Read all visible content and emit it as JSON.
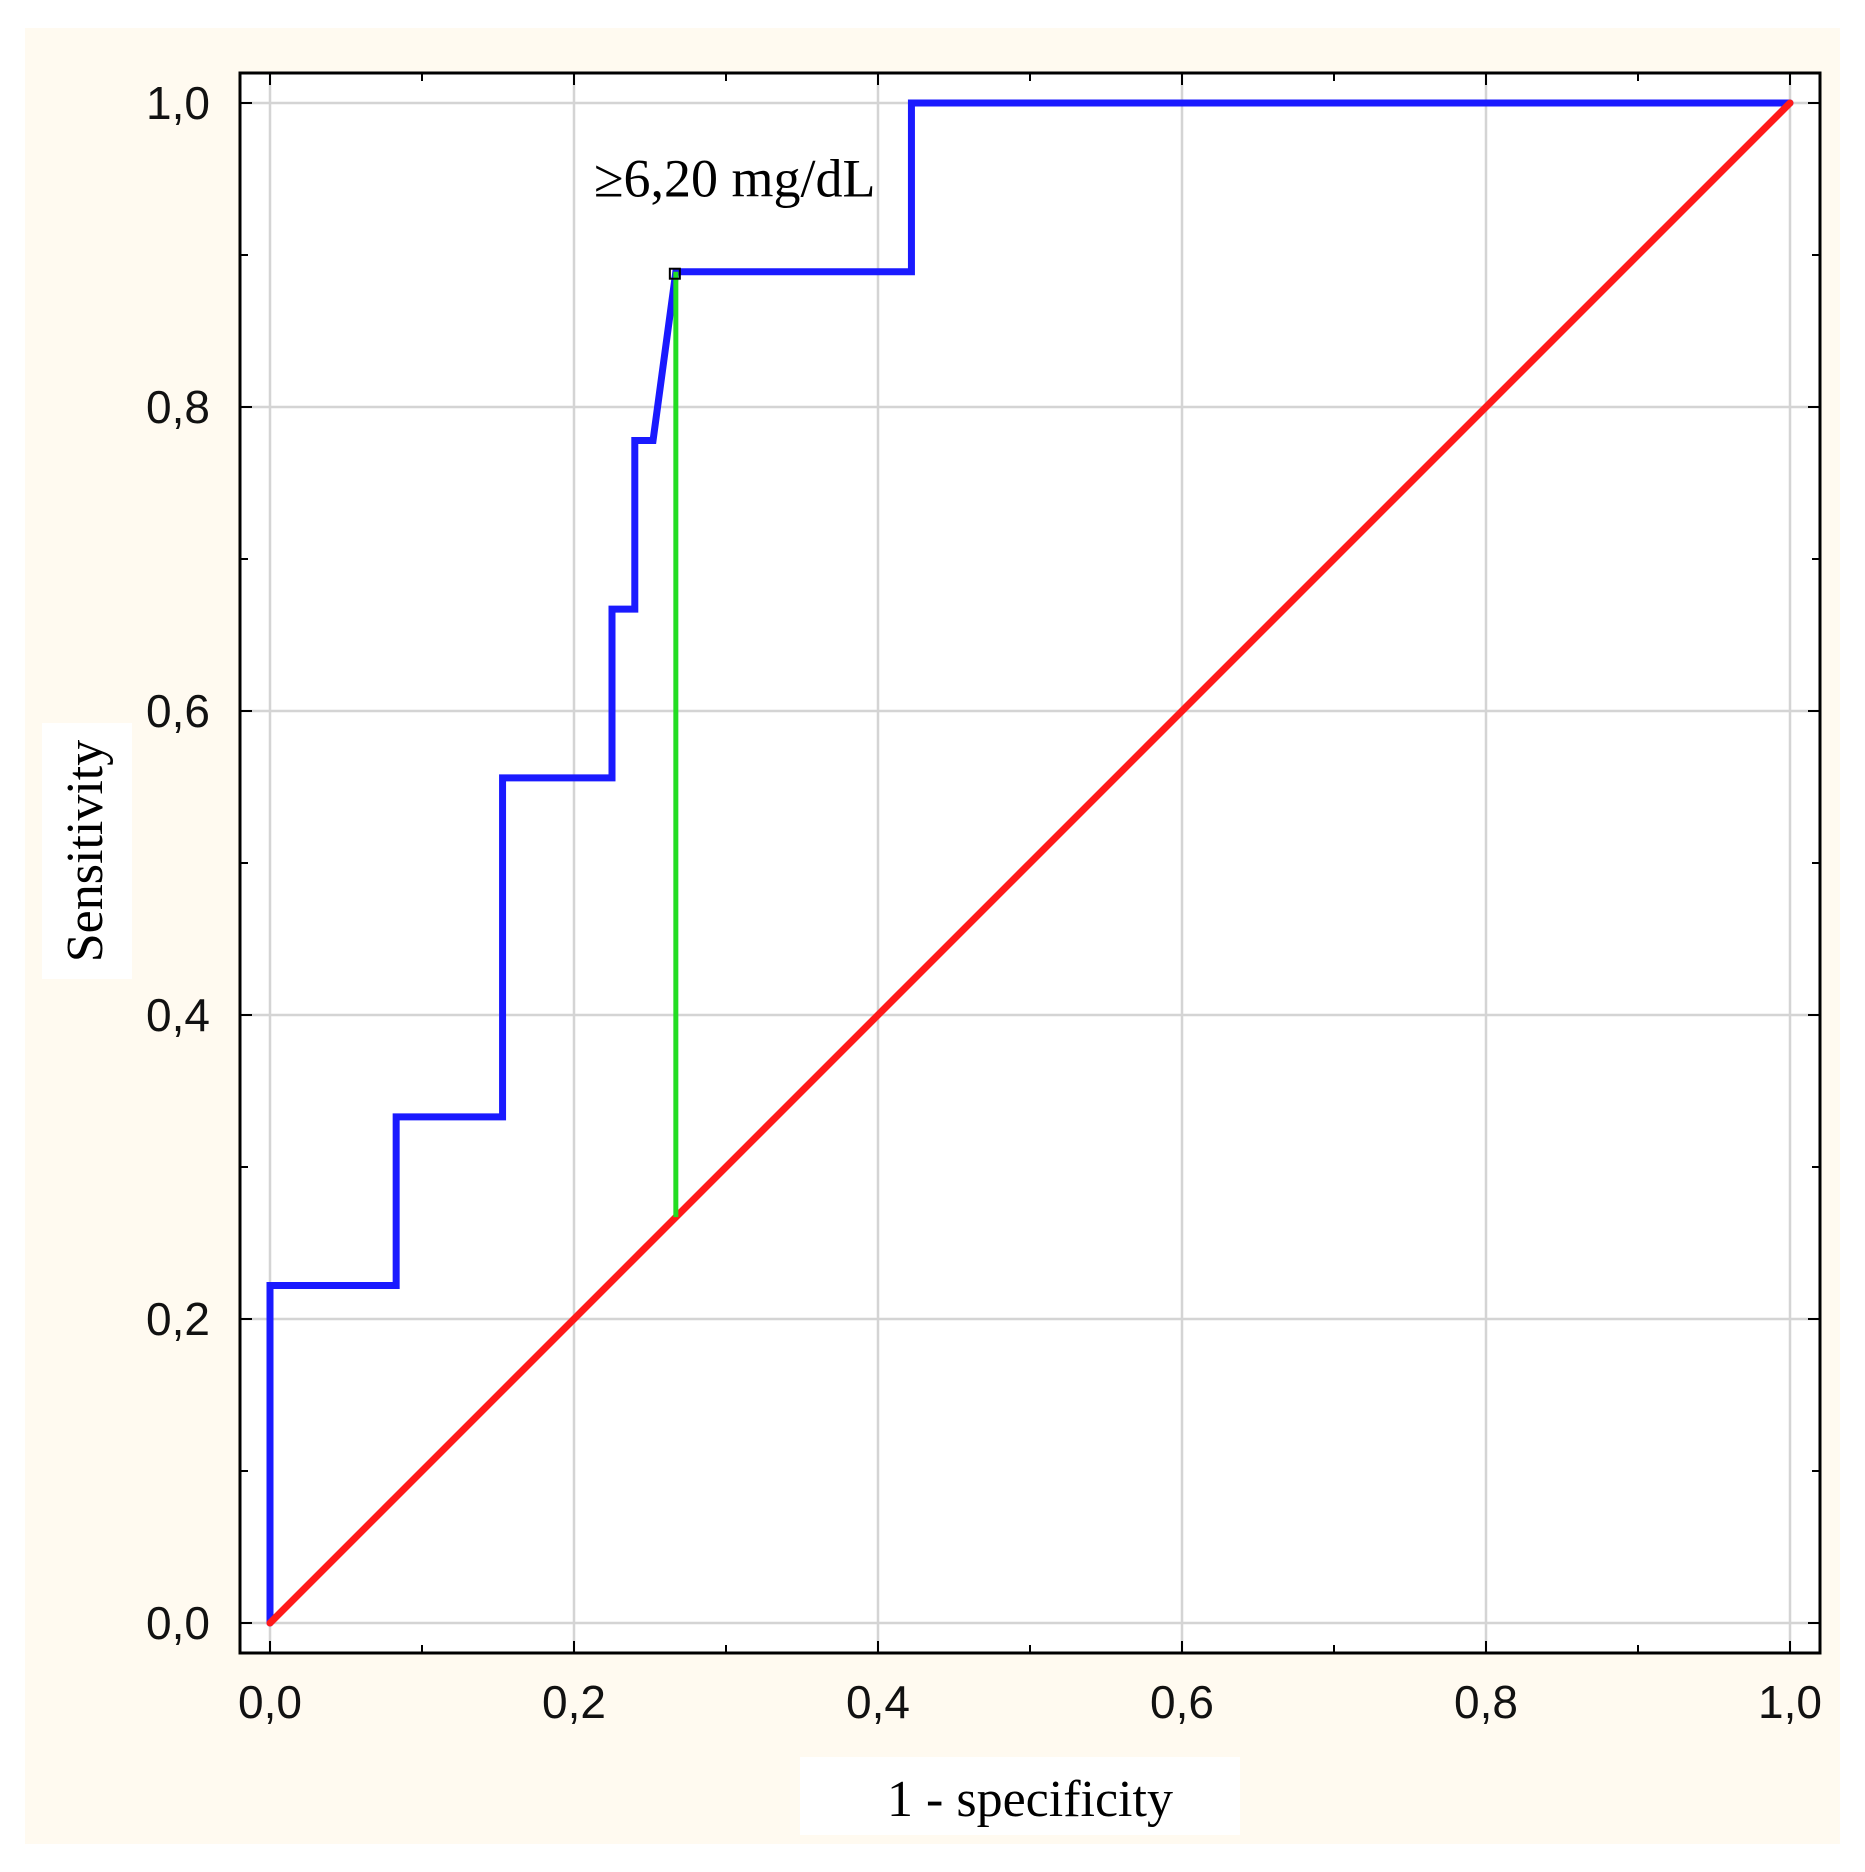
{
  "chart_data": {
    "type": "line",
    "xlabel": "1 - specificity",
    "ylabel": "Sensitivity",
    "xlim": [
      0,
      1
    ],
    "ylim": [
      0,
      1
    ],
    "grid": true,
    "x_ticks": [
      "0,0",
      "0,2",
      "0,4",
      "0,6",
      "0,8",
      "1,0"
    ],
    "y_ticks": [
      "0,0",
      "0,2",
      "0,4",
      "0,6",
      "0,8",
      "1,0"
    ],
    "tick_values": [
      0,
      0.2,
      0.4,
      0.6,
      0.8,
      1.0
    ],
    "minor_tick_values": [
      0.1,
      0.3,
      0.5,
      0.7,
      0.9
    ],
    "series": [
      {
        "color": "#1a1aff",
        "x": [
          0,
          0,
          0.083,
          0.083,
          0.153,
          0.153,
          0.225,
          0.225,
          0.24,
          0.24,
          0.252,
          0.252,
          0.267,
          0.267,
          0.422,
          0.422,
          1.0
        ],
        "y": [
          0,
          0.222,
          0.222,
          0.333,
          0.333,
          0.556,
          0.556,
          0.667,
          0.667,
          0.778,
          0.778,
          0.778,
          0.889,
          0.889,
          0.889,
          1.0,
          1.0
        ]
      },
      {
        "color": "#ff1a1a",
        "x": [
          0,
          1
        ],
        "y": [
          0,
          1
        ]
      }
    ],
    "cutoff": {
      "x": 0.267,
      "y_top": 0.889,
      "y_bottom": 0.267,
      "color": "#22dd22"
    },
    "annotations": [
      {
        "text": "≥6,20 mg/dL",
        "x": 0.267,
        "y": 0.889
      }
    ]
  },
  "colors": {
    "page_background": "#fffaf0",
    "plot_background": "#ffffff",
    "grid": "#d4d4d4",
    "frame": "#000000"
  }
}
